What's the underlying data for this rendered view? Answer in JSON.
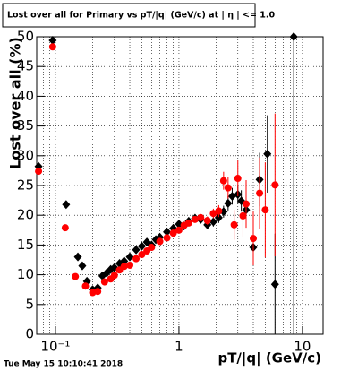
{
  "chart_data": {
    "type": "scatter",
    "title": "Lost over all for Primary vs pT/|q| (GeV/c) at | η | <= 1.0",
    "x_label": "pT/|q| (GeV/c)",
    "y_label": "Lost over all (%)",
    "footer": "Tue May 15 10:10:41 2018",
    "xlog": true,
    "grid": true,
    "xlim": [
      0.0705,
      14.7
    ],
    "ylim": [
      0,
      50
    ],
    "xticks": [
      {
        "value": 0.1,
        "label": "10⁻¹"
      },
      1,
      10
    ],
    "xgrid": [
      0.08,
      0.09,
      0.1,
      0.2,
      0.3,
      0.4,
      0.5,
      0.6,
      0.7,
      0.8,
      0.9,
      1,
      2,
      3,
      4,
      5,
      6,
      7,
      8,
      9,
      10
    ],
    "yticks": [
      0,
      5,
      10,
      15,
      20,
      25,
      30,
      35,
      40,
      45,
      50
    ],
    "series": [
      {
        "color": "#000000",
        "marker": "diamond",
        "x": [
          0.073,
          0.095,
          0.122,
          0.152,
          0.165,
          0.18,
          0.2,
          0.22,
          0.24,
          0.26,
          0.28,
          0.3,
          0.33,
          0.36,
          0.4,
          0.45,
          0.5,
          0.55,
          0.6,
          0.65,
          0.7,
          0.8,
          0.9,
          1.0,
          1.1,
          1.2,
          1.35,
          1.5,
          1.7,
          1.9,
          2.1,
          2.3,
          2.5,
          2.7,
          3.0,
          3.2,
          3.5,
          4.0,
          4.5,
          5.2,
          6.0,
          8.5
        ],
        "values": [
          28.2,
          49.4,
          21.8,
          13.0,
          11.5,
          8.9,
          7.5,
          7.8,
          9.8,
          10.3,
          10.9,
          11.2,
          11.9,
          12.3,
          13.0,
          14.2,
          14.8,
          15.5,
          15.0,
          15.9,
          16.3,
          17.2,
          17.8,
          18.5,
          18.2,
          19.0,
          19.5,
          19.3,
          18.4,
          18.9,
          19.6,
          20.6,
          22.0,
          23.2,
          23.5,
          22.4,
          20.9,
          14.6,
          26.0,
          30.3,
          8.4,
          50.0
        ],
        "errors": [
          0.5,
          0.5,
          0.5,
          0.5,
          0.3,
          0.3,
          0.3,
          0.3,
          0.3,
          0.3,
          0.3,
          0.3,
          0.3,
          0.3,
          0.3,
          0.3,
          0.3,
          0.3,
          0.3,
          0.3,
          0.4,
          0.4,
          0.4,
          0.5,
          0.5,
          0.5,
          0.6,
          0.6,
          0.7,
          0.8,
          0.9,
          1.0,
          1.2,
          1.4,
          1.6,
          1.8,
          2.5,
          3.0,
          4.5,
          6.5,
          8.5,
          50.0
        ]
      },
      {
        "color": "#ff0000",
        "marker": "circle",
        "x": [
          0.073,
          0.095,
          0.12,
          0.145,
          0.175,
          0.2,
          0.22,
          0.25,
          0.28,
          0.3,
          0.33,
          0.36,
          0.4,
          0.45,
          0.5,
          0.55,
          0.6,
          0.7,
          0.8,
          0.9,
          1.0,
          1.1,
          1.2,
          1.35,
          1.5,
          1.7,
          1.9,
          2.1,
          2.3,
          2.5,
          2.8,
          3.0,
          3.3,
          3.5,
          4.0,
          4.5,
          5.0,
          6.0
        ],
        "values": [
          27.4,
          48.3,
          17.9,
          9.7,
          8.1,
          7.0,
          7.2,
          8.8,
          9.3,
          9.9,
          10.8,
          11.4,
          11.6,
          12.7,
          13.4,
          14.0,
          14.6,
          15.6,
          16.2,
          17.0,
          17.5,
          18.3,
          18.7,
          19.3,
          19.6,
          19.1,
          20.3,
          20.7,
          25.8,
          24.6,
          18.4,
          26.2,
          19.9,
          21.9,
          16.1,
          23.7,
          20.9,
          25.1
        ],
        "errors": [
          0.5,
          0.5,
          0.5,
          0.5,
          0.5,
          0.3,
          0.3,
          0.3,
          0.3,
          0.3,
          0.3,
          0.3,
          0.3,
          0.3,
          0.3,
          0.3,
          0.3,
          0.3,
          0.3,
          0.3,
          0.4,
          0.4,
          0.5,
          0.5,
          0.6,
          0.7,
          0.8,
          1.0,
          1.5,
          1.8,
          2.5,
          3.0,
          3.5,
          4.0,
          4.5,
          6.0,
          8.0,
          12.0
        ]
      }
    ]
  }
}
